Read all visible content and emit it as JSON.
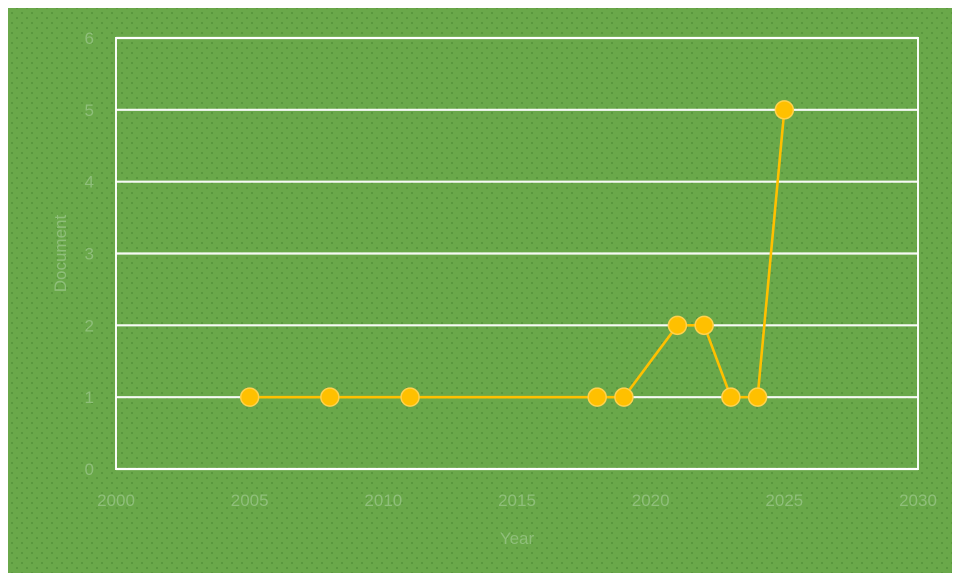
{
  "chart_data": {
    "type": "scatter",
    "title": "",
    "xlabel": "Year",
    "ylabel": "Document",
    "xlim": [
      2000,
      2030
    ],
    "ylim": [
      0,
      6
    ],
    "x_ticks": [
      2000,
      2005,
      2010,
      2015,
      2020,
      2025,
      2030
    ],
    "y_ticks": [
      0,
      1,
      2,
      3,
      4,
      5,
      6
    ],
    "grid": true,
    "legend": "none",
    "series": [
      {
        "x": [
          2005,
          2008,
          2011,
          2018,
          2019,
          2021,
          2022,
          2023,
          2024,
          2025
        ],
        "y": [
          1,
          1,
          1,
          1,
          1,
          2,
          2,
          1,
          1,
          5
        ],
        "color": "#ffc000"
      }
    ],
    "colors": {
      "background": "#6aa84a",
      "speckle": "#4f8a35",
      "grid": "#ffffff",
      "text": "#8fbf7a",
      "series": "#ffc000"
    }
  }
}
